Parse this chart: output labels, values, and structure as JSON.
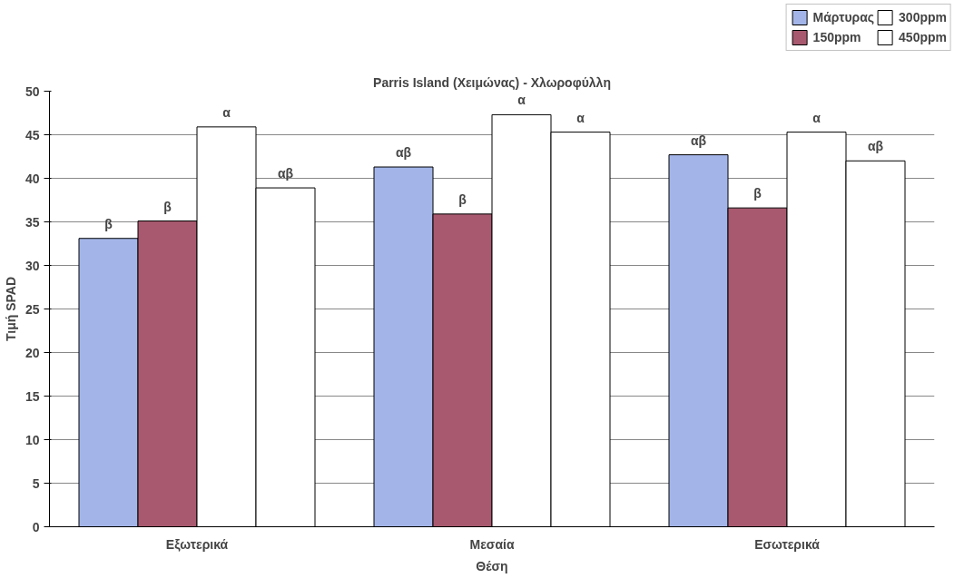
{
  "chart_data": {
    "type": "bar",
    "title": "Parris Island (Χειμώνας) - Χλωροφύλλη",
    "xlabel": "Θέση",
    "ylabel": "Τιμή SPAD",
    "categories": [
      "Εξωτερικά",
      "Μεσαία",
      "Εσωτερικά"
    ],
    "series": [
      {
        "name": "Μάρτυρας",
        "color": "#a3b5e8",
        "values": [
          33.1,
          41.3,
          42.7
        ],
        "value_labels": [
          "β",
          "αβ",
          "αβ"
        ]
      },
      {
        "name": "150ppm",
        "color": "#a8596f",
        "values": [
          35.1,
          35.9,
          36.6
        ],
        "value_labels": [
          "β",
          "β",
          "β"
        ]
      },
      {
        "name": "300ppm",
        "color": "#ffffff",
        "values": [
          45.9,
          47.3,
          45.3
        ],
        "value_labels": [
          "α",
          "α",
          "α"
        ]
      },
      {
        "name": "450ppm",
        "color": "#ffffff",
        "values": [
          38.9,
          45.3,
          42.0
        ],
        "value_labels": [
          "αβ",
          "α",
          "αβ"
        ]
      }
    ],
    "ylim": [
      0,
      50
    ],
    "yticks": [
      0,
      5,
      10,
      15,
      20,
      25,
      30,
      35,
      40,
      45,
      50
    ],
    "grid": "y",
    "legend": "top right"
  }
}
